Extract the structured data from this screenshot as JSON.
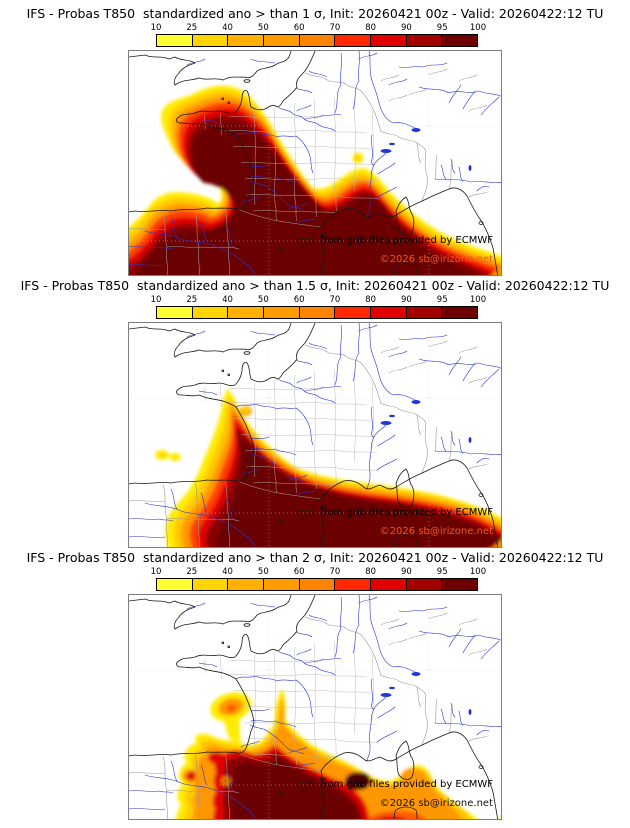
{
  "colorbar": {
    "tick_labels": [
      "10",
      "25",
      "40",
      "50",
      "60",
      "70",
      "80",
      "90",
      "95",
      "100"
    ],
    "segment_colors": [
      "#ffff33",
      "#ffd400",
      "#ffb000",
      "#ff9c00",
      "#ff8300",
      "#ff2600",
      "#e10000",
      "#a30000",
      "#6f0000"
    ]
  },
  "panels": [
    {
      "title": "IFS - Probas T850  standardized ano > than 1 σ, Init: 20260421 00z - Valid: 20260422:12 TU",
      "credit_line1": "from grib files provided by ECMWF",
      "credit_line2": "©2026 sb@irizone.net",
      "credit_line2_color": "#ee5a22"
    },
    {
      "title": "IFS - Probas T850  standardized ano > than 1.5 σ, Init: 20260421 00z - Valid: 20260422:12 TU",
      "credit_line1": "from grib files provided by ECMWF",
      "credit_line2": "©2026 sb@irizone.net",
      "credit_line2_color": "#ee5a22"
    },
    {
      "title": "IFS - Probas T850  standardized ano > than 2 σ, Init: 20260421 00z - Valid: 20260422:12 TU",
      "credit_line1": "from grib files provided by ECMWF",
      "credit_line2": "©2026 sb@irizone.net",
      "credit_line2_color": "#111111"
    }
  ],
  "map_colors": {
    "coast": "#1a1a1a",
    "river": "#2635d9",
    "country_border": "#999999",
    "department_border": "#b5b5b5",
    "frame": "#7d7d7d"
  }
}
